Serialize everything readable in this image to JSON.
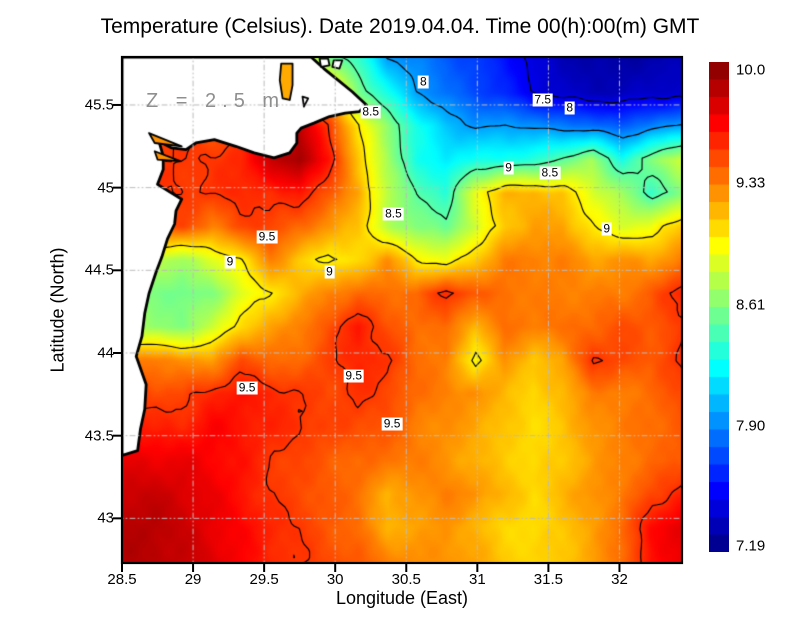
{
  "title": "Temperature (Celsius). Date 2019.04.04. Time 00(h):00(m) GMT",
  "annotation": "Z = 2.5 m",
  "axes": {
    "x_label": "Longitude (East)",
    "y_label": "Latitude (North)",
    "x_ticks": [
      28.5,
      29,
      29.5,
      30,
      30.5,
      31,
      31.5,
      32
    ],
    "x_tick_labels": [
      "28.5",
      "29",
      "29.5",
      "30",
      "30.5",
      "31",
      "31.5",
      "32"
    ],
    "y_ticks": [
      45.5,
      45,
      44.5,
      44,
      43.5,
      43
    ],
    "y_tick_labels": [
      "45.5",
      "45",
      "44.5",
      "44",
      "43.5",
      "43"
    ]
  },
  "colorbar": {
    "min": 7.19,
    "max": 10.0,
    "tick_values": [
      10.0,
      9.33,
      8.61,
      7.9,
      7.19
    ],
    "tick_labels": [
      "10.0",
      "9.33",
      "8.61",
      "7.90",
      "7.19"
    ],
    "colormap": "jet",
    "steps": 28
  },
  "chart_data": {
    "type": "heatmap",
    "variable": "sea water temperature",
    "units": "Celsius",
    "depth_label": "Z = 2.5 m",
    "date": "2019.04.04",
    "time": "00(h):00(m) GMT",
    "lon_range": [
      28.5,
      32.44
    ],
    "lat_range": [
      42.73,
      45.79
    ],
    "nx": 20,
    "ny": 16,
    "value_range": [
      7.19,
      10.0
    ],
    "temperature_grid": [
      [
        9.0,
        9.0,
        9.0,
        8.9,
        8.9,
        8.8,
        8.9,
        8.6,
        8.4,
        8.0,
        7.9,
        7.8,
        7.7,
        7.6,
        7.45,
        7.35,
        7.3,
        7.3,
        7.3,
        7.35
      ],
      [
        9.3,
        9.3,
        9.3,
        9.2,
        9.1,
        9.2,
        9.0,
        9.2,
        8.6,
        8.3,
        8.0,
        7.85,
        7.75,
        7.65,
        7.48,
        7.4,
        7.35,
        7.35,
        7.4,
        7.4
      ],
      [
        9.5,
        9.5,
        9.5,
        9.4,
        9.5,
        9.7,
        9.8,
        9.5,
        9.0,
        8.65,
        8.3,
        8.1,
        7.95,
        8.0,
        7.95,
        7.9,
        7.85,
        7.8,
        7.9,
        8.0
      ],
      [
        9.6,
        9.5,
        9.5,
        9.5,
        9.55,
        9.8,
        9.9,
        9.6,
        9.1,
        8.7,
        8.3,
        8.2,
        8.3,
        8.3,
        8.35,
        8.5,
        8.7,
        8.3,
        8.6,
        8.8
      ],
      [
        9.5,
        9.5,
        9.5,
        9.5,
        9.55,
        9.52,
        9.6,
        9.4,
        9.2,
        8.75,
        8.5,
        8.35,
        8.9,
        9.15,
        9.15,
        9.1,
        8.85,
        8.7,
        8.4,
        8.6
      ],
      [
        9.45,
        9.45,
        9.45,
        9.3,
        9.45,
        9.48,
        9.35,
        9.25,
        9.1,
        8.75,
        8.6,
        8.55,
        8.8,
        9.1,
        9.2,
        9.2,
        9.0,
        8.85,
        8.9,
        9.1
      ],
      [
        8.8,
        8.75,
        8.7,
        8.85,
        9.0,
        9.3,
        9.1,
        8.95,
        9.05,
        9.25,
        9.0,
        8.9,
        9.1,
        9.3,
        9.3,
        9.3,
        9.2,
        9.25,
        9.2,
        9.3
      ],
      [
        8.6,
        8.6,
        8.55,
        8.6,
        8.85,
        9.0,
        9.15,
        9.3,
        9.35,
        9.35,
        9.35,
        9.55,
        9.4,
        9.35,
        9.3,
        9.3,
        9.3,
        9.3,
        9.4,
        9.55
      ],
      [
        8.75,
        8.65,
        8.6,
        8.8,
        9.05,
        9.2,
        9.3,
        9.42,
        9.6,
        9.42,
        9.35,
        9.35,
        9.15,
        9.35,
        9.3,
        9.35,
        9.35,
        9.45,
        9.4,
        9.48
      ],
      [
        9.3,
        9.3,
        9.25,
        9.2,
        9.45,
        9.35,
        9.35,
        9.48,
        9.55,
        9.52,
        9.35,
        9.3,
        8.95,
        9.25,
        9.1,
        9.2,
        9.52,
        9.45,
        9.4,
        9.52
      ],
      [
        9.52,
        9.45,
        9.45,
        9.55,
        9.6,
        9.55,
        9.5,
        9.45,
        9.52,
        9.46,
        9.35,
        9.3,
        9.25,
        9.15,
        9.05,
        9.15,
        9.3,
        9.3,
        9.35,
        9.45
      ],
      [
        9.6,
        9.55,
        9.55,
        9.65,
        9.6,
        9.55,
        9.52,
        9.46,
        9.45,
        9.42,
        9.3,
        9.25,
        9.2,
        9.1,
        9.04,
        9.1,
        9.25,
        9.3,
        9.35,
        9.4
      ],
      [
        9.7,
        9.7,
        9.7,
        9.65,
        9.6,
        9.5,
        9.45,
        9.4,
        9.35,
        9.35,
        9.3,
        9.25,
        9.15,
        9.1,
        9.04,
        9.1,
        9.2,
        9.3,
        9.35,
        9.4
      ],
      [
        9.8,
        9.8,
        9.75,
        9.7,
        9.6,
        9.5,
        9.45,
        9.4,
        9.35,
        9.15,
        9.25,
        9.3,
        9.25,
        9.15,
        9.05,
        9.15,
        9.25,
        9.3,
        9.45,
        9.55
      ],
      [
        9.85,
        9.85,
        9.8,
        9.7,
        9.65,
        9.55,
        9.5,
        9.4,
        9.35,
        9.15,
        9.2,
        9.25,
        9.15,
        9.05,
        9.04,
        9.1,
        9.2,
        9.35,
        9.62,
        9.72
      ],
      [
        9.85,
        9.85,
        9.8,
        9.75,
        9.65,
        9.55,
        9.5,
        9.45,
        9.4,
        9.3,
        9.25,
        9.25,
        9.2,
        9.1,
        9.05,
        9.1,
        9.2,
        9.35,
        9.6,
        9.7
      ]
    ],
    "contour_levels": [
      7.5,
      8.0,
      8.5,
      9.0,
      9.5
    ],
    "contour_labels": [
      {
        "text": "8",
        "lon": 30.62,
        "lat": 45.64
      },
      {
        "text": "8.5",
        "lon": 30.25,
        "lat": 45.46
      },
      {
        "text": "7.5",
        "lon": 31.46,
        "lat": 45.53
      },
      {
        "text": "8",
        "lon": 31.65,
        "lat": 45.48
      },
      {
        "text": "9",
        "lon": 31.22,
        "lat": 45.12
      },
      {
        "text": "8.5",
        "lon": 31.51,
        "lat": 45.09
      },
      {
        "text": "8.5",
        "lon": 30.41,
        "lat": 44.84
      },
      {
        "text": "9",
        "lon": 31.91,
        "lat": 44.75
      },
      {
        "text": "9.5",
        "lon": 29.52,
        "lat": 44.7
      },
      {
        "text": "9",
        "lon": 29.26,
        "lat": 44.55
      },
      {
        "text": "9",
        "lon": 29.96,
        "lat": 44.49
      },
      {
        "text": "9.5",
        "lon": 30.13,
        "lat": 43.86
      },
      {
        "text": "9.5",
        "lon": 29.38,
        "lat": 43.79
      },
      {
        "text": "9.5",
        "lon": 30.4,
        "lat": 43.57
      }
    ],
    "land_polygons": {
      "mainland": [
        [
          28.5,
          45.79
        ],
        [
          29.83,
          45.79
        ],
        [
          29.92,
          45.72
        ],
        [
          30.02,
          45.65
        ],
        [
          30.12,
          45.58
        ],
        [
          30.22,
          45.5
        ],
        [
          30.17,
          45.46
        ],
        [
          30.07,
          45.45
        ],
        [
          29.96,
          45.43
        ],
        [
          29.85,
          45.39
        ],
        [
          29.76,
          45.36
        ],
        [
          29.73,
          45.33
        ],
        [
          29.73,
          45.27
        ],
        [
          29.68,
          45.21
        ],
        [
          29.57,
          45.18
        ],
        [
          29.43,
          45.21
        ],
        [
          29.3,
          45.25
        ],
        [
          29.15,
          45.29
        ],
        [
          29.02,
          45.27
        ],
        [
          28.95,
          45.23
        ],
        [
          28.85,
          45.24
        ],
        [
          28.76,
          45.28
        ],
        [
          28.79,
          45.19
        ],
        [
          28.79,
          45.11
        ],
        [
          28.75,
          45.02
        ],
        [
          28.92,
          44.93
        ],
        [
          28.88,
          44.86
        ],
        [
          28.87,
          44.78
        ],
        [
          28.82,
          44.69
        ],
        [
          28.78,
          44.58
        ],
        [
          28.74,
          44.49
        ],
        [
          28.69,
          44.36
        ],
        [
          28.66,
          44.24
        ],
        [
          28.64,
          44.1
        ],
        [
          28.6,
          43.98
        ],
        [
          28.67,
          43.81
        ],
        [
          28.66,
          43.66
        ],
        [
          28.63,
          43.54
        ],
        [
          28.61,
          43.41
        ],
        [
          28.5,
          43.38
        ]
      ],
      "islets": [
        [
          [
            29.89,
            45.78
          ],
          [
            29.95,
            45.78
          ],
          [
            29.96,
            45.74
          ],
          [
            29.9,
            45.73
          ]
        ],
        [
          [
            29.99,
            45.77
          ],
          [
            30.05,
            45.77
          ],
          [
            30.03,
            45.72
          ],
          [
            29.98,
            45.73
          ]
        ],
        [
          [
            29.77,
            45.55
          ],
          [
            29.81,
            45.54
          ],
          [
            29.78,
            45.49
          ]
        ]
      ],
      "lagoons": [
        {
          "points": [
            [
              29.62,
              45.75
            ],
            [
              29.7,
              45.75
            ],
            [
              29.7,
              45.62
            ],
            [
              29.68,
              45.53
            ],
            [
              29.63,
              45.54
            ],
            [
              29.61,
              45.65
            ]
          ],
          "fill": "#ffaa00"
        },
        {
          "points": [
            [
              28.69,
              45.33
            ],
            [
              28.92,
              45.25
            ],
            [
              28.73,
              45.27
            ]
          ],
          "fill": "#ff9100"
        },
        {
          "points": [
            [
              28.73,
              45.22
            ],
            [
              28.91,
              45.16
            ],
            [
              28.75,
              45.17
            ]
          ],
          "fill": "#ff9100"
        }
      ]
    }
  },
  "colors": {
    "background": "#ffffff",
    "frame": "#000000",
    "grid": "#bcbcbc",
    "contour": "#000000",
    "land_fill": "#ffffff",
    "coast_stroke": "#000000",
    "annotation_gray": "#8f8f8f"
  }
}
